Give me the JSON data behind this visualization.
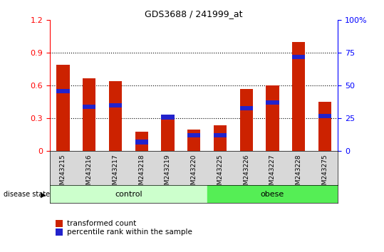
{
  "title": "GDS3688 / 241999_at",
  "samples": [
    "GSM243215",
    "GSM243216",
    "GSM243217",
    "GSM243218",
    "GSM243219",
    "GSM243220",
    "GSM243225",
    "GSM243226",
    "GSM243227",
    "GSM243228",
    "GSM243275"
  ],
  "transformed_count": [
    0.79,
    0.67,
    0.64,
    0.18,
    0.33,
    0.2,
    0.24,
    0.57,
    0.6,
    1.0,
    0.45
  ],
  "percentile_rank_pct": [
    46,
    34,
    35,
    7,
    26,
    12,
    12,
    33,
    37,
    72,
    27
  ],
  "bar_color": "#cc2200",
  "percentile_color": "#2222cc",
  "ylim_left": [
    0,
    1.2
  ],
  "ylim_right": [
    0,
    100
  ],
  "yticks_left": [
    0,
    0.3,
    0.6,
    0.9,
    1.2
  ],
  "ytick_labels_left": [
    "0",
    "0.3",
    "0.6",
    "0.9",
    "1.2"
  ],
  "yticks_right": [
    0,
    25,
    50,
    75,
    100
  ],
  "ytick_labels_right": [
    "0",
    "25",
    "50",
    "75",
    "100%"
  ],
  "control_n": 6,
  "obese_n": 5,
  "control_color": "#ccffcc",
  "obese_color": "#55ee55",
  "control_label": "control",
  "obese_label": "obese",
  "disease_state_label": "disease state",
  "legend_red_label": "transformed count",
  "legend_blue_label": "percentile rank within the sample",
  "bar_width": 0.5,
  "tick_area_color": "#d8d8d8",
  "blue_bar_height": 0.04
}
